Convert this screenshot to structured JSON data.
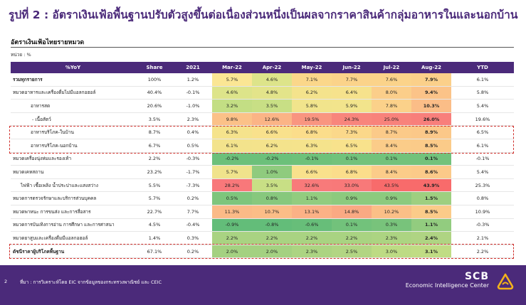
{
  "title": "รูปที่ 2 : อัตราเงินเฟ้อพื้นฐานปรับตัวสูงขึ้นต่อเนื่องส่วนหนึ่งเป็นผลจากราคาสินค้ากลุ่มอาหารในและนอกบ้าน",
  "subtitle": "อัตราเงินเฟ้อไทยรายหมวด",
  "unit": "หน่วย : %",
  "table": {
    "headers": [
      "%YoY",
      "Share",
      "2021",
      "Mar-22",
      "Apr-22",
      "May-22",
      "Jun-22",
      "Jul-22",
      "Aug-22",
      "YTD"
    ],
    "rows": [
      {
        "label": "รวมทุกรายการ",
        "share": "100%",
        "y2021": "1.2%",
        "months": [
          "5.7%",
          "4.6%",
          "7.1%",
          "7.7%",
          "7.6%",
          "7.9%"
        ],
        "ytd": "6.1%",
        "bold_label": true,
        "colors": [
          "#fbe694",
          "#dde48a",
          "#fbd78a",
          "#fbd38a",
          "#fbd38a",
          "#fbd08a"
        ]
      },
      {
        "label": "หมวดอาหารและเครื่องดื่มไม่มีแอลกอฮอล์",
        "share": "40.4%",
        "y2021": "-0.1%",
        "months": [
          "4.6%",
          "4.8%",
          "6.2%",
          "6.4%",
          "8.0%",
          "9.4%"
        ],
        "ytd": "5.8%",
        "bold_label": false,
        "colors": [
          "#dde48a",
          "#e3e48a",
          "#f4e38c",
          "#f6e28c",
          "#fbce8a",
          "#fbc388"
        ]
      },
      {
        "label": "อาหารสด",
        "share": "20.6%",
        "y2021": "-1.0%",
        "months": [
          "3.2%",
          "3.5%",
          "5.8%",
          "5.9%",
          "7.8%",
          "10.3%"
        ],
        "ytd": "5.4%",
        "bold_label": false,
        "colors": [
          "#c3de84",
          "#c8df85",
          "#f1e48c",
          "#f2e48c",
          "#fbd18a",
          "#fbbd87"
        ]
      },
      {
        "label": "- เนื้อสัตว์",
        "share": "3.5%",
        "y2021": "2.3%",
        "months": [
          "9.8%",
          "12.6%",
          "19.5%",
          "24.3%",
          "25.0%",
          "26.0%"
        ],
        "ytd": "19.6%",
        "bold_label": false,
        "colors": [
          "#fbc188",
          "#fbb486",
          "#f99580",
          "#f8857c",
          "#f8827b",
          "#f87f7b"
        ]
      },
      {
        "label": "อาหารบริโภค-ในบ้าน",
        "share": "8.7%",
        "y2021": "0.4%",
        "months": [
          "6.3%",
          "6.6%",
          "6.8%",
          "7.3%",
          "8.7%",
          "8.9%"
        ],
        "ytd": "6.5%",
        "bold_label": false,
        "colors": [
          "#f5e38c",
          "#f9e18c",
          "#fbdd8b",
          "#fbd88a",
          "#fbca89",
          "#fbc889"
        ]
      },
      {
        "label": "อาหารบริโภค-นอกบ้าน",
        "share": "6.7%",
        "y2021": "0.5%",
        "months": [
          "6.1%",
          "6.2%",
          "6.3%",
          "6.5%",
          "8.4%",
          "8.5%"
        ],
        "ytd": "6.1%",
        "bold_label": false,
        "colors": [
          "#f3e38c",
          "#f4e38c",
          "#f5e38c",
          "#f8e28c",
          "#fbcc89",
          "#fbcb89"
        ]
      },
      {
        "label": "หมวดเครื่องนุ่งห่มและรองเท้า",
        "share": "2.2%",
        "y2021": "-0.3%",
        "months": [
          "-0.2%",
          "-0.2%",
          "-0.1%",
          "0.1%",
          "0.1%",
          "0.1%"
        ],
        "ytd": "-0.1%",
        "bold_label": false,
        "colors": [
          "#6cc07a",
          "#6cc07a",
          "#6ec17a",
          "#72c27b",
          "#72c27b",
          "#72c27b"
        ]
      },
      {
        "label": "หมวดเคหสถาน",
        "share": "23.2%",
        "y2021": "-1.7%",
        "months": [
          "5.7%",
          "1.0%",
          "6.6%",
          "6.8%",
          "8.4%",
          "8.6%"
        ],
        "ytd": "5.4%",
        "bold_label": false,
        "colors": [
          "#f0e38c",
          "#8fcb7e",
          "#f9e18c",
          "#fbdd8b",
          "#fbcc89",
          "#fbca89"
        ]
      },
      {
        "label": "ไฟฟ้า เชื้อเพลิง น้ำประปาและแสงสว่าง",
        "share": "5.5%",
        "y2021": "-7.3%",
        "months": [
          "28.2%",
          "3.5%",
          "32.6%",
          "33.0%",
          "43.5%",
          "43.9%"
        ],
        "ytd": "25.3%",
        "bold_label": false,
        "colors": [
          "#f8787a",
          "#c8df85",
          "#f87a7a",
          "#f87979",
          "#f86b6b",
          "#f86b6b"
        ]
      },
      {
        "label": "หมวดการตรวจรักษาและบริการส่วนบุคคล",
        "share": "5.7%",
        "y2021": "0.2%",
        "months": [
          "0.5%",
          "0.8%",
          "1.1%",
          "0.9%",
          "0.9%",
          "1.5%"
        ],
        "ytd": "0.8%",
        "bold_label": false,
        "colors": [
          "#7ec57c",
          "#87c87d",
          "#92cc7f",
          "#8cca7e",
          "#8cca7e",
          "#9ecf80"
        ]
      },
      {
        "label": "หมวดพาหนะ การขนส่ง และการสื่อสาร",
        "share": "22.7%",
        "y2021": "7.7%",
        "months": [
          "11.3%",
          "10.7%",
          "13.1%",
          "14.8%",
          "10.2%",
          "8.5%"
        ],
        "ytd": "10.9%",
        "bold_label": false,
        "colors": [
          "#fbba87",
          "#fbbd87",
          "#fbb186",
          "#faa983",
          "#fbbf87",
          "#fbcb89"
        ]
      },
      {
        "label": "หมวดการบันเทิงการอ่าน การศึกษา และการศาสนา",
        "share": "4.5%",
        "y2021": "-0.4%",
        "months": [
          "-0.9%",
          "-0.8%",
          "-0.6%",
          "0.1%",
          "0.3%",
          "1.1%"
        ],
        "ytd": "-0.3%",
        "bold_label": false,
        "colors": [
          "#63bd79",
          "#63bd79",
          "#67be79",
          "#72c27b",
          "#78c37b",
          "#92cc7f"
        ]
      },
      {
        "label": "หมวดยาสูบและเครื่องดื่มมีแอลกอฮอล์",
        "share": "1.4%",
        "y2021": "0.3%",
        "months": [
          "2.2%",
          "2.2%",
          "2.2%",
          "2.2%",
          "2.3%",
          "2.4%"
        ],
        "ytd": "2.1%",
        "bold_label": false,
        "colors": [
          "#a9d382",
          "#a9d382",
          "#a9d382",
          "#a9d382",
          "#acd482",
          "#afd483"
        ]
      },
      {
        "label": "ดัชนีราคาผู้บริโภคพื้นฐาน",
        "share": "67.1%",
        "y2021": "0.2%",
        "months": [
          "2.0%",
          "2.0%",
          "2.3%",
          "2.5%",
          "3.0%",
          "3.1%"
        ],
        "ytd": "2.2%",
        "bold_label": true,
        "colors": [
          "#a4d181",
          "#a4d181",
          "#acd482",
          "#b2d583",
          "#bddb84",
          "#c0dc84"
        ]
      }
    ]
  },
  "footer": {
    "page_number": "2",
    "source": "ที่มา : การวิเคราะห์โดย EIC จากข้อมูลของกระทรวงพาณิชย์ และ CEIC",
    "brand_name": "SCB",
    "brand_sub": "Economic Intelligence Center"
  },
  "colors": {
    "header_bg": "#4b2a7a",
    "title_color": "#4b2a7a",
    "highlight_border": "#d0312d",
    "logo_color": "#f3b21b"
  }
}
